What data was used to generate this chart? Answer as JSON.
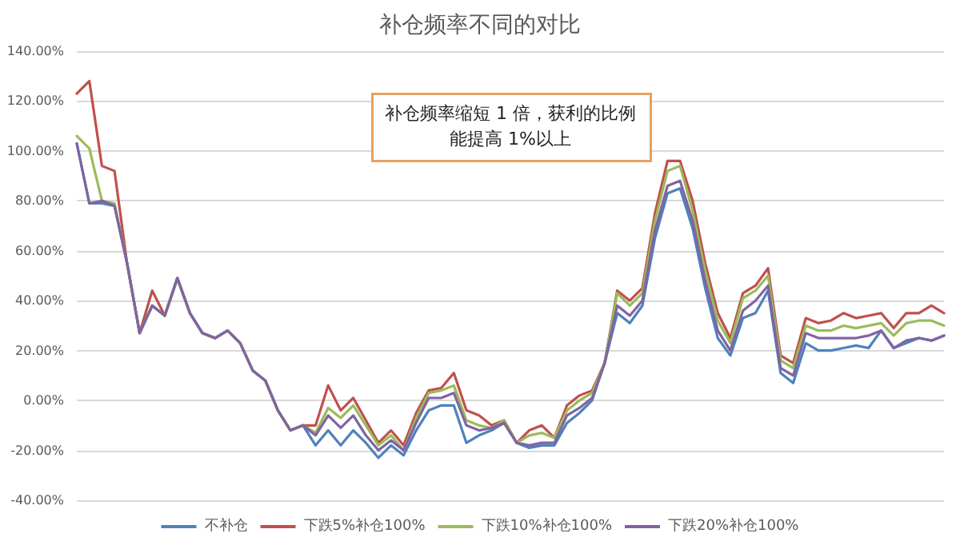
{
  "chart_data": {
    "type": "line",
    "title": "补仓频率不同的对比",
    "categories": [
      null,
      null,
      null,
      null,
      null,
      null,
      null,
      null,
      null,
      null,
      null,
      null,
      null,
      null,
      null,
      null,
      null,
      null,
      null,
      null,
      null,
      null,
      null,
      null,
      null,
      null,
      null,
      null,
      null,
      null,
      null,
      null,
      null,
      null,
      null,
      null,
      null,
      null,
      null,
      null,
      null,
      null,
      null,
      null,
      null,
      null,
      null,
      null,
      null,
      null,
      null,
      null,
      null,
      null,
      null,
      null,
      null,
      null,
      null,
      null,
      null,
      null,
      null,
      null,
      null,
      null,
      null,
      null,
      null,
      null
    ],
    "series": [
      {
        "name": "不补仓",
        "color": "#4f81bd",
        "values": [
          103,
          79,
          79,
          78,
          55,
          27,
          38,
          34,
          49,
          35,
          27,
          25,
          28,
          23,
          12,
          8,
          -4,
          -12,
          -10,
          -18,
          -12,
          -18,
          -12,
          -17,
          -23,
          -18,
          -22,
          -12,
          -4,
          -2,
          -2,
          -17,
          -14,
          -12,
          -9,
          -17,
          -19,
          -18,
          -18,
          -9,
          -5,
          0,
          15,
          35,
          31,
          38,
          65,
          83,
          85,
          69,
          45,
          25,
          18,
          33,
          35,
          44,
          11,
          7,
          23,
          20,
          20,
          21,
          22,
          21,
          28,
          21,
          23,
          25,
          24,
          26
        ]
      },
      {
        "name": "下跌5%补仓100%",
        "color": "#c0504d",
        "values": [
          123,
          128,
          94,
          92,
          55,
          27,
          44,
          34,
          49,
          35,
          27,
          25,
          28,
          23,
          12,
          8,
          -4,
          -12,
          -10,
          -10,
          6,
          -4,
          1,
          -8,
          -17,
          -12,
          -18,
          -5,
          4,
          5,
          11,
          -4,
          -6,
          -10,
          -8,
          -17,
          -12,
          -10,
          -15,
          -2,
          2,
          4,
          15,
          44,
          40,
          45,
          75,
          96,
          96,
          80,
          55,
          35,
          25,
          43,
          46,
          53,
          18,
          15,
          33,
          31,
          32,
          35,
          33,
          34,
          35,
          29,
          35,
          35,
          38,
          35
        ]
      },
      {
        "name": "下跌10%补仓100%",
        "color": "#9bbb59",
        "values": [
          106,
          101,
          80,
          79,
          55,
          27,
          38,
          34,
          49,
          35,
          27,
          25,
          28,
          23,
          12,
          8,
          -4,
          -12,
          -10,
          -13,
          -3,
          -7,
          -2,
          -10,
          -18,
          -14,
          -20,
          -7,
          3,
          4,
          6,
          -8,
          -10,
          -11,
          -8,
          -17,
          -14,
          -13,
          -15,
          -4,
          0,
          3,
          15,
          43,
          38,
          43,
          72,
          92,
          94,
          76,
          52,
          32,
          23,
          41,
          44,
          50,
          16,
          13,
          30,
          28,
          28,
          30,
          29,
          30,
          31,
          26,
          31,
          32,
          32,
          30
        ]
      },
      {
        "name": "下跌20%补仓100%",
        "color": "#8064a2",
        "values": [
          103,
          79,
          80,
          78,
          55,
          27,
          38,
          34,
          49,
          35,
          27,
          25,
          28,
          23,
          12,
          8,
          -4,
          -12,
          -10,
          -14,
          -6,
          -11,
          -6,
          -14,
          -20,
          -16,
          -20,
          -9,
          1,
          1,
          3,
          -10,
          -12,
          -11,
          -9,
          -17,
          -18,
          -17,
          -17,
          -6,
          -3,
          1,
          15,
          38,
          34,
          40,
          68,
          86,
          88,
          72,
          48,
          28,
          20,
          36,
          40,
          46,
          13,
          10,
          27,
          25,
          25,
          25,
          25,
          26,
          28,
          21,
          24,
          25,
          24,
          26
        ]
      }
    ],
    "ylim": [
      -40,
      140
    ],
    "yticks": [
      {
        "value": -40,
        "label": "-40.00%"
      },
      {
        "value": -20,
        "label": "-20.00%"
      },
      {
        "value": 0,
        "label": "0.00%"
      },
      {
        "value": 20,
        "label": "20.00%"
      },
      {
        "value": 40,
        "label": "40.00%"
      },
      {
        "value": 60,
        "label": "60.00%"
      },
      {
        "value": 80,
        "label": "80.00%"
      },
      {
        "value": 100,
        "label": "100.00%"
      },
      {
        "value": 120,
        "label": "120.00%"
      },
      {
        "value": 140,
        "label": "140.00%"
      }
    ],
    "annotations": [
      "补仓频率缩短 1 倍，获利的比例",
      "能提高 1%以上"
    ],
    "grid": "y",
    "legend": "bottom",
    "marker": "none",
    "line_style": "solid"
  }
}
